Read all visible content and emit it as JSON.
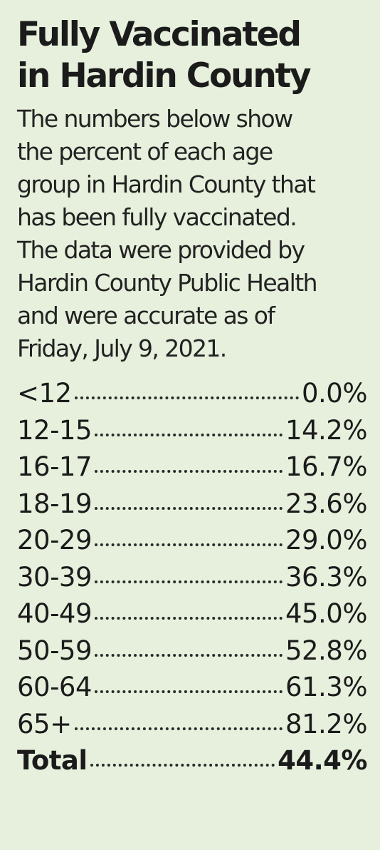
{
  "title": {
    "line1": "Fully Vaccinated",
    "line2": "in Hardin County"
  },
  "intro": {
    "lines": [
      "The numbers below show",
      "the percent of each age",
      "group in Hardin County that",
      "has been fully vaccinated.",
      "The data were provided by",
      "Hardin County Public Health",
      "and were accurate as of",
      "Friday, July 9, 2021."
    ]
  },
  "rows": [
    {
      "age": "<12",
      "pct": "0.0%"
    },
    {
      "age": "12-15",
      "pct": "14.2%"
    },
    {
      "age": "16-17",
      "pct": "16.7%"
    },
    {
      "age": "18-19",
      "pct": "23.6%"
    },
    {
      "age": "20-29",
      "pct": "29.0%"
    },
    {
      "age": "30-39",
      "pct": "36.3%"
    },
    {
      "age": "40-49",
      "pct": "45.0%"
    },
    {
      "age": "50-59",
      "pct": "52.8%"
    },
    {
      "age": "60-64",
      "pct": "61.3%"
    },
    {
      "age": "65+",
      "pct": "81.2%"
    },
    {
      "age": "Total",
      "pct": "44.4%"
    }
  ]
}
